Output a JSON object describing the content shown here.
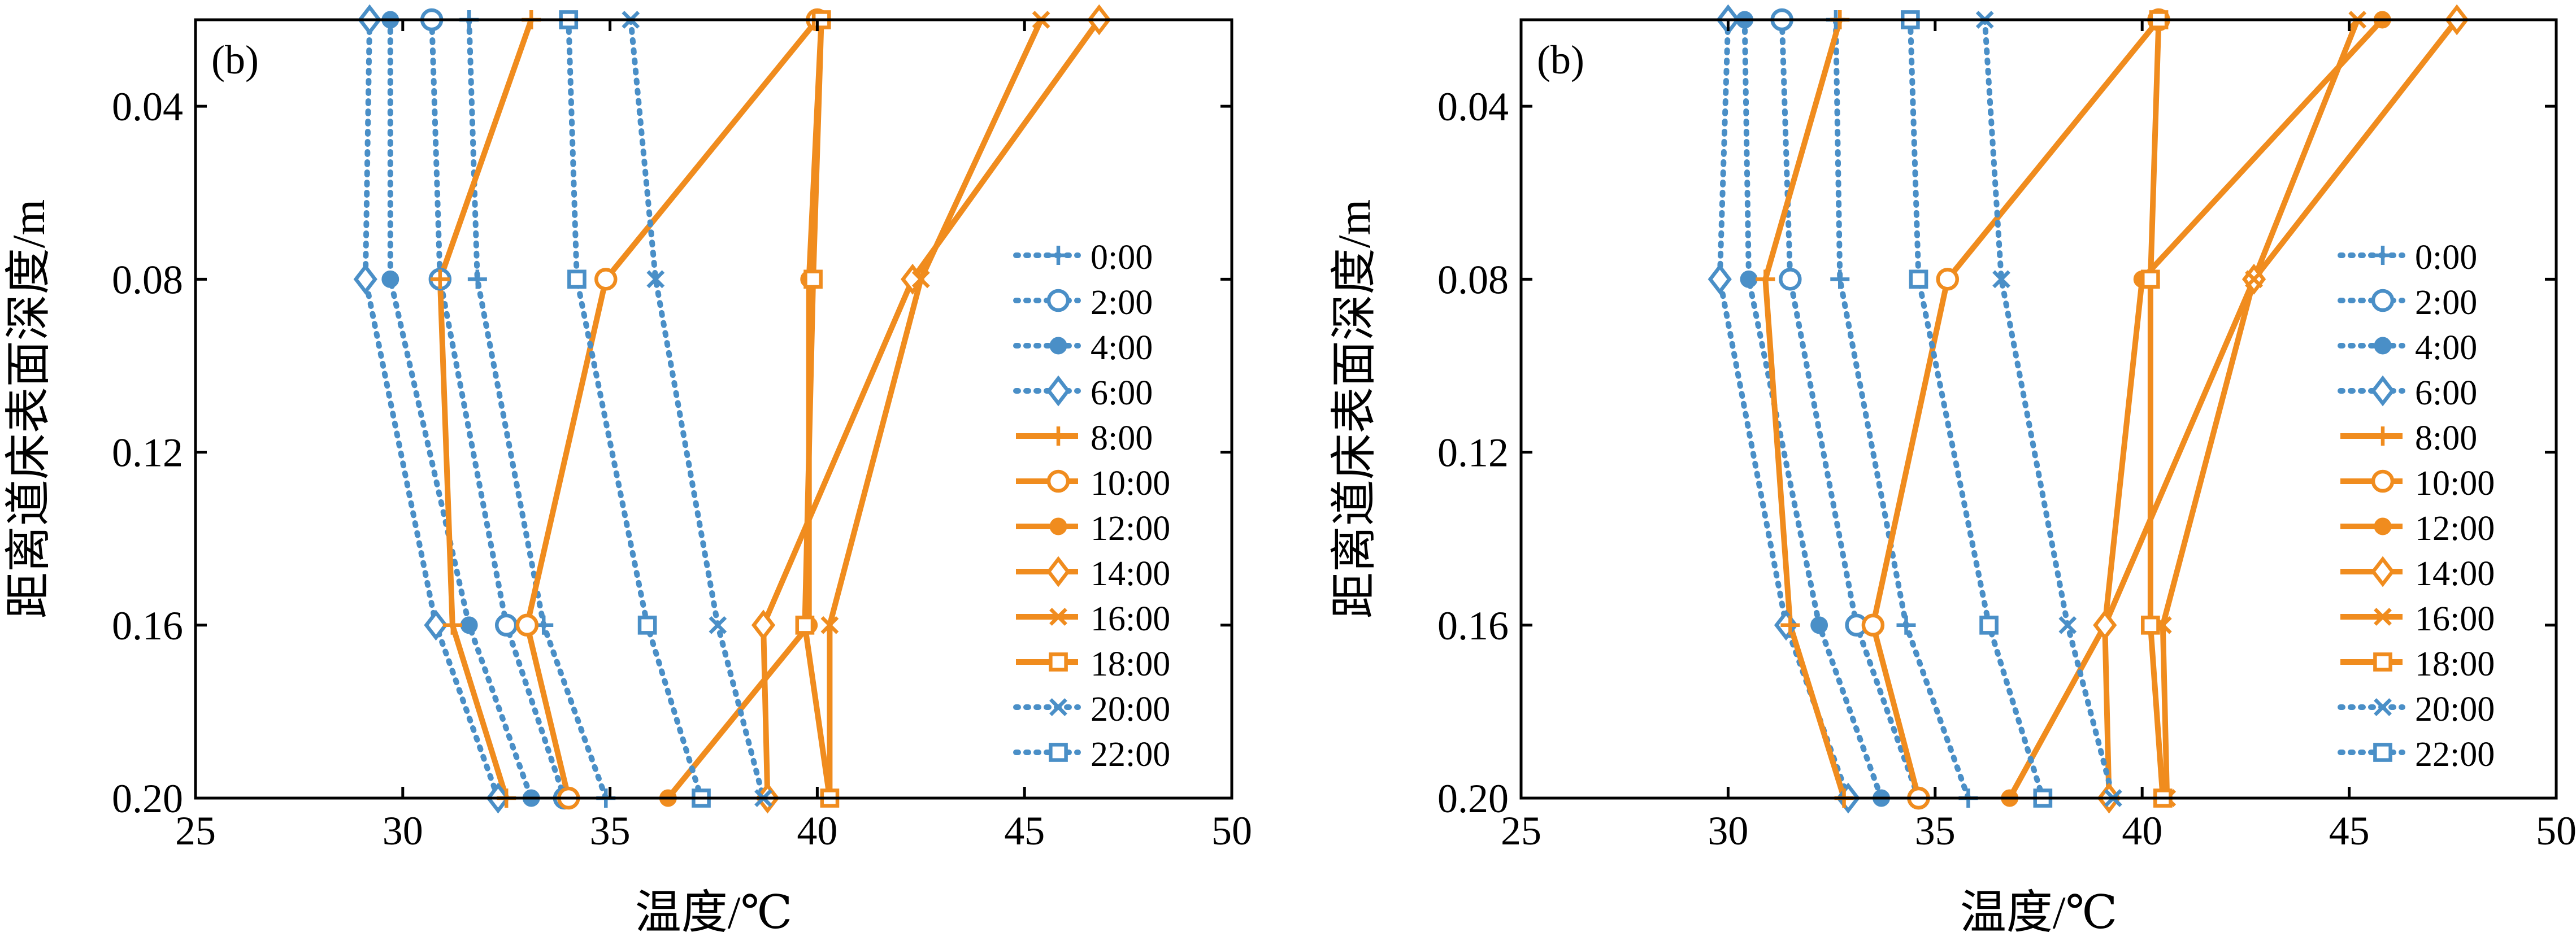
{
  "colors": {
    "blue": "#4a8fc7",
    "orange": "#f08c1e",
    "axis": "#000000"
  },
  "chart_data": [
    {
      "type": "line",
      "panel_label": "(b)",
      "xlabel": "温度/℃",
      "ylabel": "距离道床表面深度/m",
      "xlim": [
        25,
        50
      ],
      "ylim": [
        0.02,
        0.2
      ],
      "y_inverted": true,
      "xticks": [
        "25",
        "30",
        "35",
        "40",
        "45",
        "50"
      ],
      "yticks": [
        "0.04",
        "0.08",
        "0.12",
        "0.16",
        "0.20"
      ],
      "legend_position": "right",
      "y": [
        0.02,
        0.08,
        0.16,
        0.2
      ],
      "series": [
        {
          "name": "0:00",
          "x": [
            31.6,
            31.8,
            33.4,
            34.9
          ],
          "color": "blue",
          "dashed": true,
          "marker": "plus"
        },
        {
          "name": "2:00",
          "x": [
            30.7,
            30.9,
            32.5,
            33.9
          ],
          "color": "blue",
          "dashed": true,
          "marker": "circle-open"
        },
        {
          "name": "4:00",
          "x": [
            29.7,
            29.7,
            31.6,
            33.1
          ],
          "color": "blue",
          "dashed": true,
          "marker": "circle-filled"
        },
        {
          "name": "6:00",
          "x": [
            29.2,
            29.1,
            30.8,
            32.3
          ],
          "color": "blue",
          "dashed": true,
          "marker": "diamond-open"
        },
        {
          "name": "8:00",
          "x": [
            33.1,
            30.9,
            31.2,
            32.5
          ],
          "color": "orange",
          "dashed": false,
          "marker": "plus"
        },
        {
          "name": "10:00",
          "x": [
            40.0,
            34.9,
            33.0,
            34.0
          ],
          "color": "orange",
          "dashed": false,
          "marker": "circle-open"
        },
        {
          "name": "12:00",
          "x": [
            40.1,
            39.8,
            39.8,
            36.4
          ],
          "color": "orange",
          "dashed": false,
          "marker": "circle-filled"
        },
        {
          "name": "14:00",
          "x": [
            46.8,
            42.3,
            38.7,
            38.8
          ],
          "color": "orange",
          "dashed": false,
          "marker": "diamond-open"
        },
        {
          "name": "16:00",
          "x": [
            45.4,
            42.5,
            40.3,
            40.3
          ],
          "color": "orange",
          "dashed": false,
          "marker": "x"
        },
        {
          "name": "18:00",
          "x": [
            40.1,
            39.9,
            39.7,
            40.3
          ],
          "color": "orange",
          "dashed": false,
          "marker": "square-open"
        },
        {
          "name": "20:00",
          "x": [
            35.5,
            36.1,
            37.6,
            38.7
          ],
          "color": "blue",
          "dashed": true,
          "marker": "x"
        },
        {
          "name": "22:00",
          "x": [
            34.0,
            34.2,
            35.9,
            37.2
          ],
          "color": "blue",
          "dashed": true,
          "marker": "square-open"
        }
      ]
    },
    {
      "type": "line",
      "panel_label": "(b)",
      "xlabel": "温度/℃",
      "ylabel": "距离道床表面深度/m",
      "xlim": [
        25,
        50
      ],
      "ylim": [
        0.02,
        0.2
      ],
      "y_inverted": true,
      "xticks": [
        "25",
        "30",
        "35",
        "40",
        "45",
        "50"
      ],
      "yticks": [
        "0.04",
        "0.08",
        "0.12",
        "0.16",
        "0.20"
      ],
      "legend_position": "right",
      "y": [
        0.02,
        0.08,
        0.16,
        0.2
      ],
      "series": [
        {
          "name": "0:00",
          "x": [
            32.6,
            32.7,
            34.3,
            35.8
          ],
          "color": "blue",
          "dashed": true,
          "marker": "plus"
        },
        {
          "name": "2:00",
          "x": [
            31.3,
            31.5,
            33.1,
            34.6
          ],
          "color": "blue",
          "dashed": true,
          "marker": "circle-open"
        },
        {
          "name": "4:00",
          "x": [
            30.4,
            30.5,
            32.2,
            33.7
          ],
          "color": "blue",
          "dashed": true,
          "marker": "circle-filled"
        },
        {
          "name": "6:00",
          "x": [
            30.0,
            29.8,
            31.4,
            32.9
          ],
          "color": "blue",
          "dashed": true,
          "marker": "diamond-open"
        },
        {
          "name": "8:00",
          "x": [
            32.7,
            30.9,
            31.5,
            32.8
          ],
          "color": "orange",
          "dashed": false,
          "marker": "plus"
        },
        {
          "name": "10:00",
          "x": [
            40.4,
            35.3,
            33.5,
            34.6
          ],
          "color": "orange",
          "dashed": false,
          "marker": "circle-open"
        },
        {
          "name": "12:00",
          "x": [
            45.8,
            40.0,
            39.1,
            36.8
          ],
          "color": "orange",
          "dashed": false,
          "marker": "circle-filled"
        },
        {
          "name": "14:00",
          "x": [
            47.6,
            42.7,
            39.1,
            39.2
          ],
          "color": "orange",
          "dashed": false,
          "marker": "diamond-open"
        },
        {
          "name": "16:00",
          "x": [
            45.2,
            42.7,
            40.5,
            40.6
          ],
          "color": "orange",
          "dashed": false,
          "marker": "x"
        },
        {
          "name": "18:00",
          "x": [
            40.4,
            40.2,
            40.2,
            40.5
          ],
          "color": "orange",
          "dashed": false,
          "marker": "square-open"
        },
        {
          "name": "20:00",
          "x": [
            36.2,
            36.6,
            38.2,
            39.3
          ],
          "color": "blue",
          "dashed": true,
          "marker": "x"
        },
        {
          "name": "22:00",
          "x": [
            34.4,
            34.6,
            36.3,
            37.6
          ],
          "color": "blue",
          "dashed": true,
          "marker": "square-open"
        }
      ]
    }
  ]
}
